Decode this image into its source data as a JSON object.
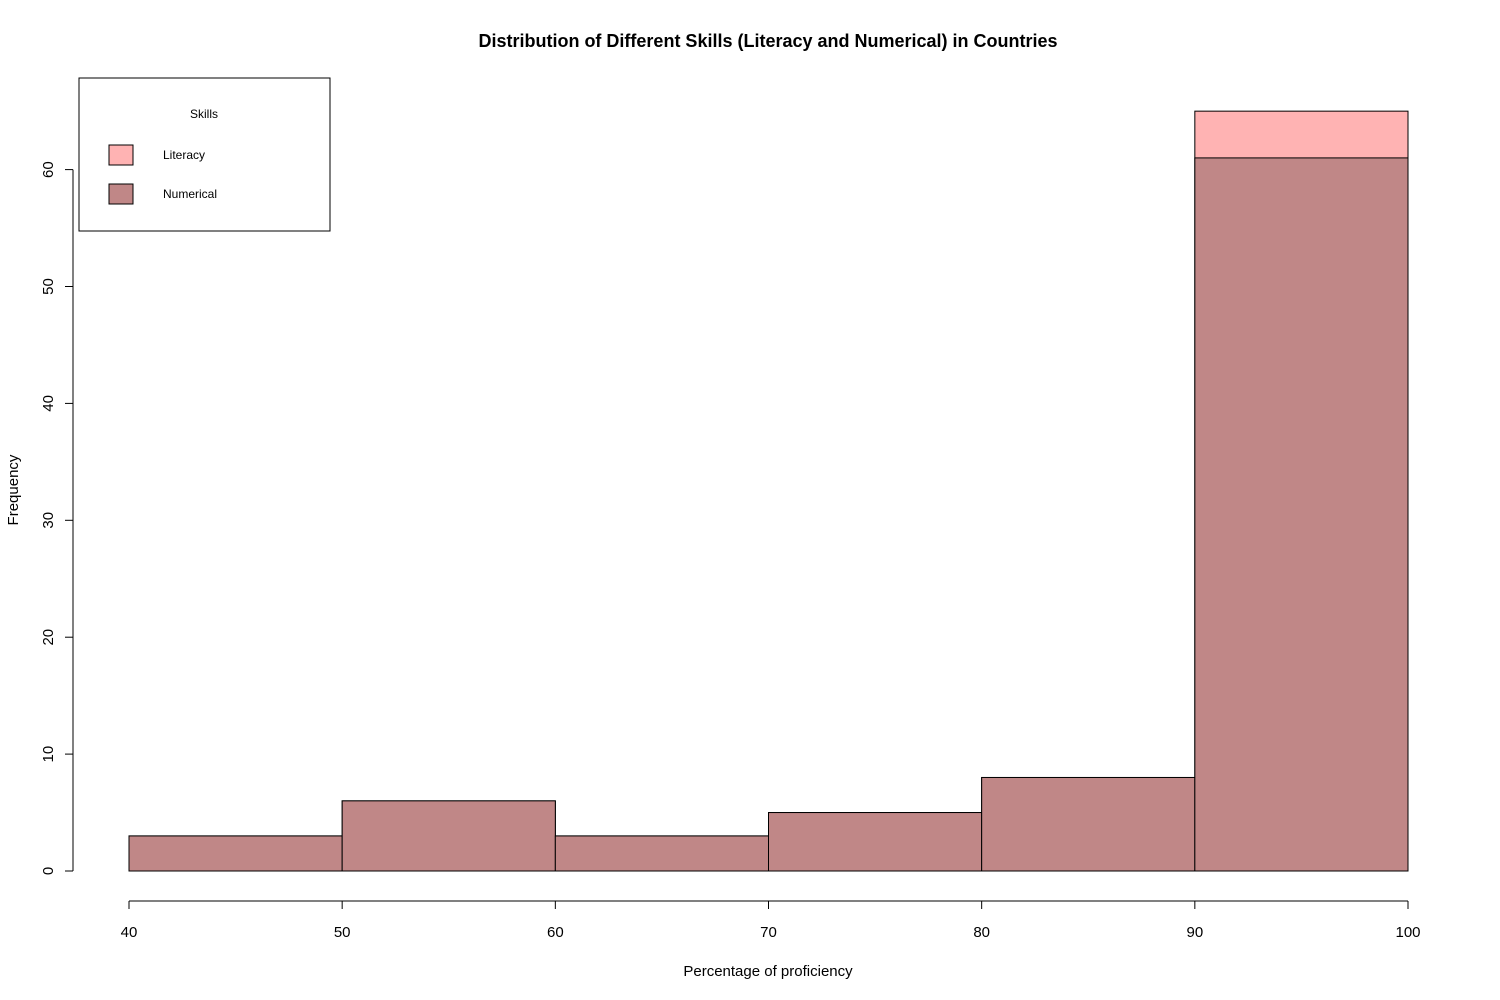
{
  "chart_data": {
    "type": "histogram",
    "title": "Distribution of Different Skills (Literacy and Numerical) in Countries",
    "xlabel": "Percentage of proficiency",
    "ylabel": "Frequency",
    "bins": [
      [
        40,
        50
      ],
      [
        50,
        60
      ],
      [
        60,
        70
      ],
      [
        70,
        80
      ],
      [
        80,
        90
      ],
      [
        90,
        100
      ]
    ],
    "series": [
      {
        "name": "Literacy",
        "color": "#ffb3b3",
        "values": [
          3,
          6,
          3,
          5,
          8,
          65
        ]
      },
      {
        "name": "Numerical",
        "color": "#c08787",
        "values": [
          3,
          6,
          3,
          5,
          8,
          61
        ]
      }
    ],
    "xticks": [
      40,
      50,
      60,
      70,
      80,
      90,
      100
    ],
    "yticks": [
      0,
      10,
      20,
      30,
      40,
      50,
      60
    ],
    "xlim": [
      40,
      100
    ],
    "ylim": [
      0,
      65
    ],
    "legend": {
      "title": "Skills",
      "position": "top-left"
    },
    "grid": false
  }
}
